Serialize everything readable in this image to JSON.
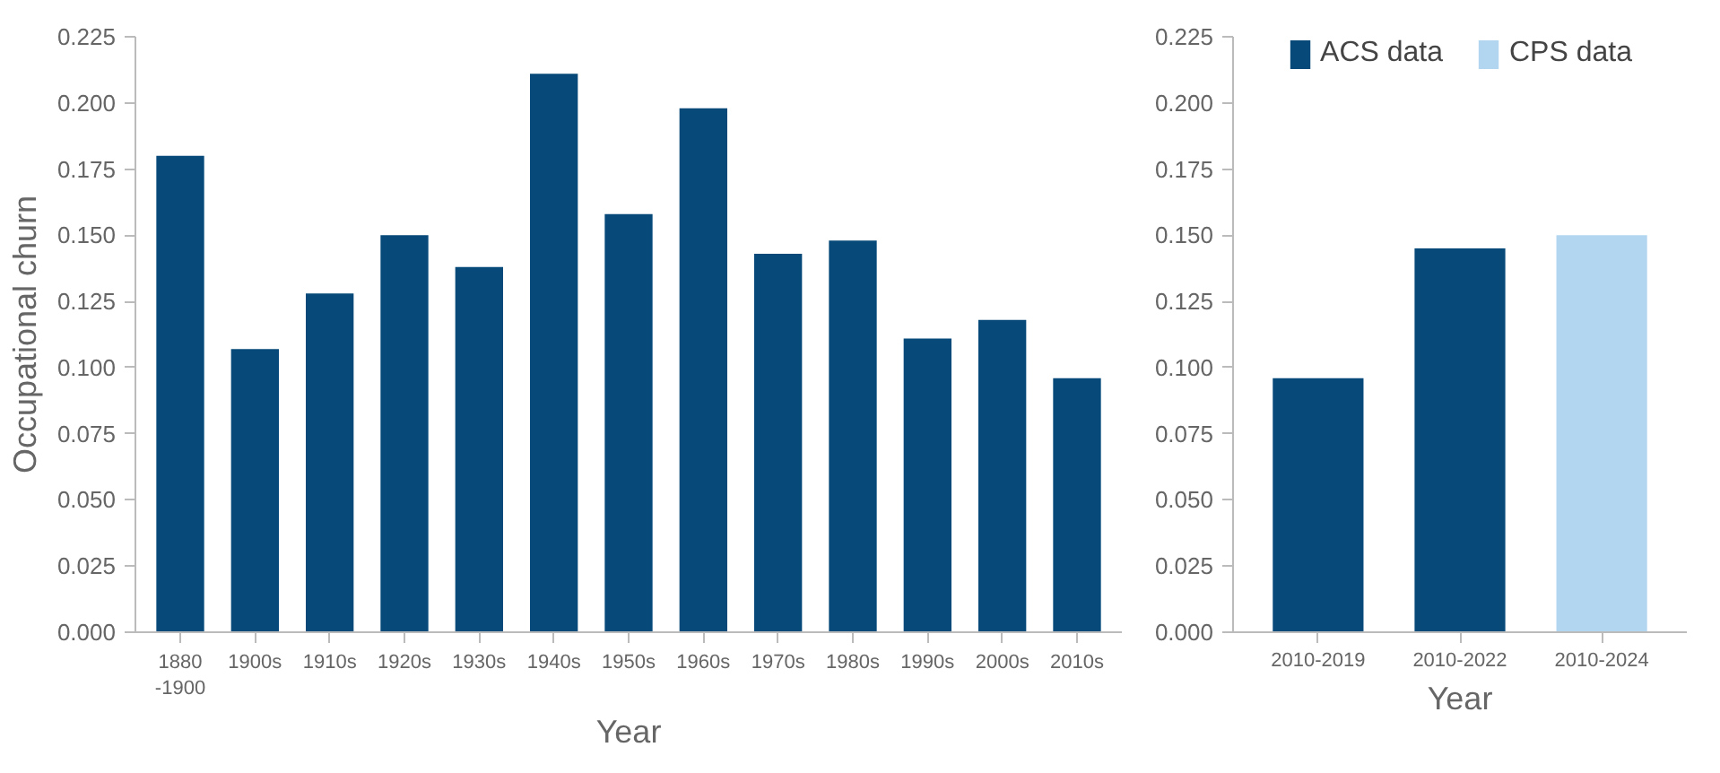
{
  "chart_data": [
    {
      "type": "bar",
      "xlabel": "Year",
      "ylabel": "Occupational churn",
      "categories": [
        "1880\n-1900",
        "1900s",
        "1910s",
        "1920s",
        "1930s",
        "1940s",
        "1950s",
        "1960s",
        "1970s",
        "1980s",
        "1990s",
        "2000s",
        "2010s"
      ],
      "series": [
        {
          "color": "#074a7a",
          "values": [
            0.18,
            0.107,
            0.128,
            0.15,
            0.138,
            0.211,
            0.158,
            0.198,
            0.143,
            0.148,
            0.111,
            0.118,
            0.096
          ]
        }
      ],
      "ylim": [
        0,
        0.225
      ],
      "yticks": [
        {
          "value": 0,
          "label": "0.000"
        },
        {
          "value": 0.025,
          "label": "0.025"
        },
        {
          "value": 0.05,
          "label": "0.050"
        },
        {
          "value": 0.075,
          "label": "0.075"
        },
        {
          "value": 0.1,
          "label": "0.100"
        },
        {
          "value": 0.125,
          "label": "0.125"
        },
        {
          "value": 0.15,
          "label": "0.150"
        },
        {
          "value": 0.175,
          "label": "0.175"
        },
        {
          "value": 0.2,
          "label": "0.200"
        },
        {
          "value": 0.225,
          "label": "0.225"
        }
      ],
      "grid": false,
      "legend": false
    },
    {
      "type": "bar",
      "xlabel": "Year",
      "categories": [
        "2010-2019",
        "2010-2022",
        "2010-2024"
      ],
      "series": [
        {
          "name": "ACS data",
          "color": "#074a7a",
          "values": [
            0.096,
            0.145,
            null
          ]
        },
        {
          "name": "CPS data",
          "color": "#b3d6f0",
          "values": [
            null,
            null,
            0.15
          ]
        }
      ],
      "ylim": [
        0,
        0.225
      ],
      "yticks": [
        {
          "value": 0,
          "label": "0.000"
        },
        {
          "value": 0.025,
          "label": "0.025"
        },
        {
          "value": 0.05,
          "label": "0.050"
        },
        {
          "value": 0.075,
          "label": "0.075"
        },
        {
          "value": 0.1,
          "label": "0.100"
        },
        {
          "value": 0.125,
          "label": "0.125"
        },
        {
          "value": 0.15,
          "label": "0.150"
        },
        {
          "value": 0.175,
          "label": "0.175"
        },
        {
          "value": 0.2,
          "label": "0.200"
        },
        {
          "value": 0.225,
          "label": "0.225"
        }
      ],
      "grid": false,
      "legend": "top"
    }
  ]
}
